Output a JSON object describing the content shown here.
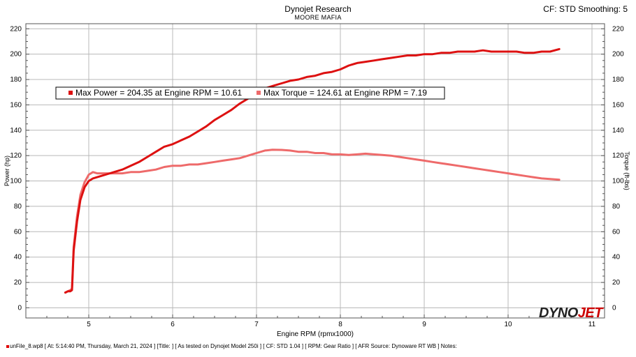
{
  "header": {
    "title": "Dynojet Research",
    "subtitle": "MOORE MAFIA",
    "cf_info": "CF: STD Smoothing: 5"
  },
  "logo": {
    "part1": "DYNO",
    "part2": "JET"
  },
  "footer": {
    "text": "unFile_8.wp8 [ At:  5:14:40 PM, Thursday, March 21, 2024 ] [Title:  ]  [ As tested on Dynojet Model 250i ] [ CF: STD 1.04 ] [ RPM:  Gear Ratio ] [ AFR Source:  Dynoware RT WB ] Notes:"
  },
  "colors": {
    "power": "#dd1111",
    "torque": "#ee6a6a",
    "grid": "#b8b8b8"
  },
  "chart_data": {
    "type": "line",
    "xlabel": "Engine RPM (rpmx1000)",
    "ylabel": "Power (hp)",
    "y2label": "Torque (ft-lbs)",
    "xlim": [
      4.25,
      11.15
    ],
    "ylim": [
      -8,
      224
    ],
    "xticks": [
      "5",
      "6",
      "7",
      "8",
      "9",
      "10",
      "11"
    ],
    "yticks": [
      "0",
      "20",
      "40",
      "60",
      "80",
      "100",
      "120",
      "140",
      "160",
      "180",
      "200",
      "220"
    ],
    "grid": true,
    "legend": {
      "power": "Max Power = 204.35 at Engine RPM = 10.61",
      "torque": "Max Torque = 124.61 at Engine RPM = 7.19"
    },
    "series": [
      {
        "key": "power",
        "x": [
          4.72,
          4.75,
          4.78,
          4.8,
          4.82,
          4.86,
          4.9,
          4.95,
          5.0,
          5.05,
          5.1,
          5.2,
          5.3,
          5.4,
          5.5,
          5.6,
          5.7,
          5.8,
          5.9,
          6.0,
          6.1,
          6.2,
          6.3,
          6.4,
          6.5,
          6.6,
          6.7,
          6.8,
          6.9,
          7.0,
          7.1,
          7.2,
          7.3,
          7.4,
          7.5,
          7.6,
          7.7,
          7.8,
          7.9,
          8.0,
          8.1,
          8.2,
          8.3,
          8.4,
          8.5,
          8.6,
          8.7,
          8.8,
          8.9,
          9.0,
          9.1,
          9.2,
          9.3,
          9.4,
          9.5,
          9.6,
          9.7,
          9.8,
          9.9,
          10.0,
          10.1,
          10.2,
          10.3,
          10.4,
          10.5,
          10.61
        ],
        "y": [
          12,
          13,
          13,
          14,
          45,
          68,
          85,
          95,
          100,
          102,
          103,
          105,
          107,
          109,
          112,
          115,
          119,
          123,
          127,
          129,
          132,
          135,
          139,
          143,
          148,
          152,
          156,
          161,
          165,
          169,
          173,
          175,
          177,
          179,
          180,
          182,
          183,
          185,
          186,
          188,
          191,
          193,
          194,
          195,
          196,
          197,
          198,
          199,
          199,
          200,
          200,
          201,
          201,
          202,
          202,
          202,
          203,
          202,
          202,
          202,
          202,
          201,
          201,
          202,
          202,
          204
        ]
      },
      {
        "key": "torque",
        "x": [
          4.72,
          4.75,
          4.78,
          4.8,
          4.82,
          4.86,
          4.9,
          4.95,
          5.0,
          5.05,
          5.1,
          5.2,
          5.3,
          5.4,
          5.5,
          5.6,
          5.7,
          5.8,
          5.9,
          6.0,
          6.1,
          6.2,
          6.3,
          6.4,
          6.5,
          6.6,
          6.7,
          6.8,
          6.9,
          7.0,
          7.1,
          7.19,
          7.3,
          7.4,
          7.5,
          7.6,
          7.7,
          7.8,
          7.9,
          8.0,
          8.1,
          8.2,
          8.3,
          8.4,
          8.5,
          8.6,
          8.7,
          8.8,
          8.9,
          9.0,
          9.1,
          9.2,
          9.3,
          9.4,
          9.5,
          9.6,
          9.7,
          9.8,
          9.9,
          10.0,
          10.1,
          10.2,
          10.3,
          10.4,
          10.5,
          10.61
        ],
        "y": [
          12,
          13,
          14,
          15,
          48,
          72,
          89,
          99,
          105,
          107,
          106,
          106,
          106,
          106,
          107,
          107,
          108,
          109,
          111,
          112,
          112,
          113,
          113,
          114,
          115,
          116,
          117,
          118,
          120,
          122,
          124,
          124.6,
          124.5,
          124,
          123,
          123,
          122,
          122,
          121,
          121,
          120.5,
          121,
          121.5,
          121,
          120.5,
          120,
          119,
          118,
          117,
          116,
          115,
          114,
          113,
          112,
          111,
          110,
          109,
          108,
          107,
          106,
          105,
          104,
          103,
          102,
          101.5,
          101
        ]
      }
    ]
  }
}
